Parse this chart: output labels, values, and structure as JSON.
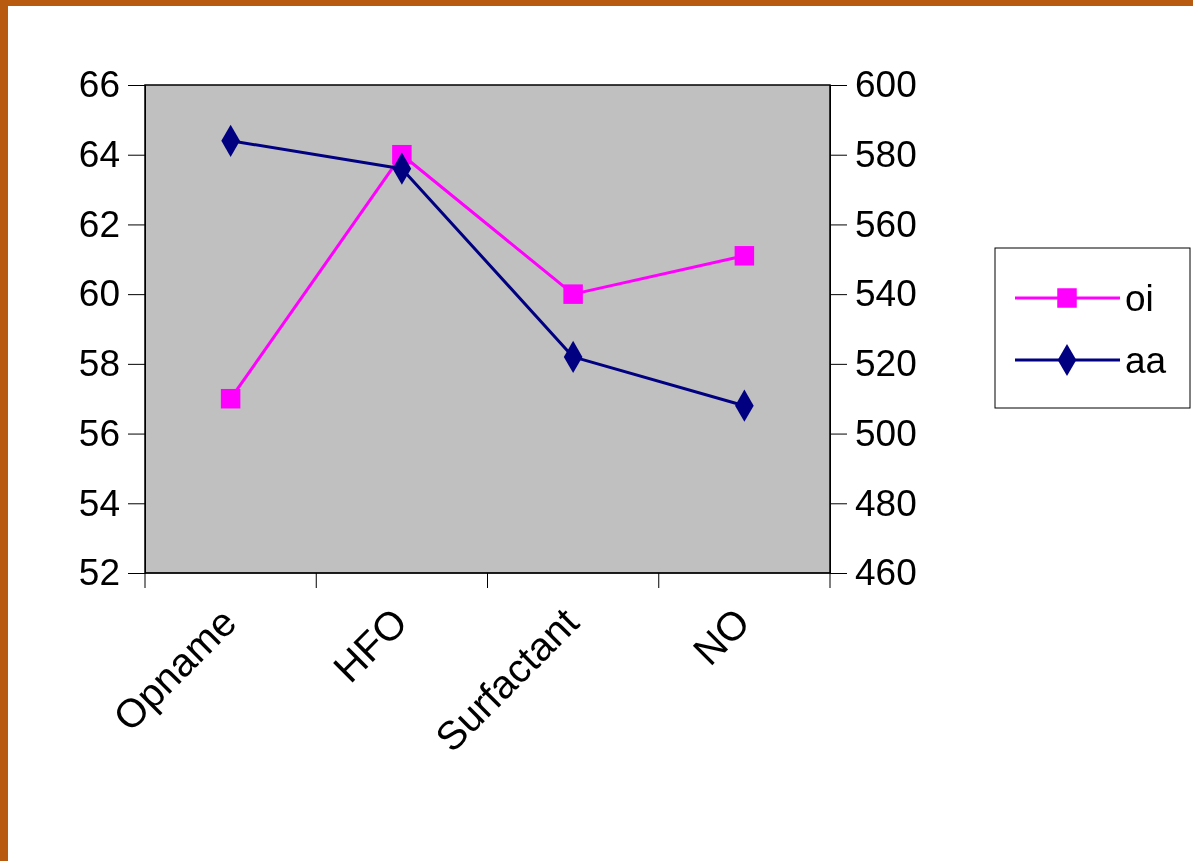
{
  "chart_data": {
    "type": "line",
    "categories": [
      "Opname",
      "HFO",
      "Surfactant",
      "NO"
    ],
    "series": [
      {
        "name": "oi",
        "color": "#ff00ff",
        "marker": "square",
        "values": [
          57.0,
          64.0,
          60.0,
          61.1
        ]
      },
      {
        "name": "aa",
        "color": "#000080",
        "marker": "diamond",
        "axis": "y2",
        "values": [
          584,
          576,
          522,
          508
        ]
      }
    ],
    "ylim": [
      52,
      66
    ],
    "yticks": [
      52,
      54,
      56,
      58,
      60,
      62,
      64,
      66
    ],
    "y2lim": [
      460,
      600
    ],
    "y2ticks": [
      460,
      480,
      500,
      520,
      540,
      560,
      580,
      600
    ],
    "grid": false,
    "legend": "right"
  }
}
